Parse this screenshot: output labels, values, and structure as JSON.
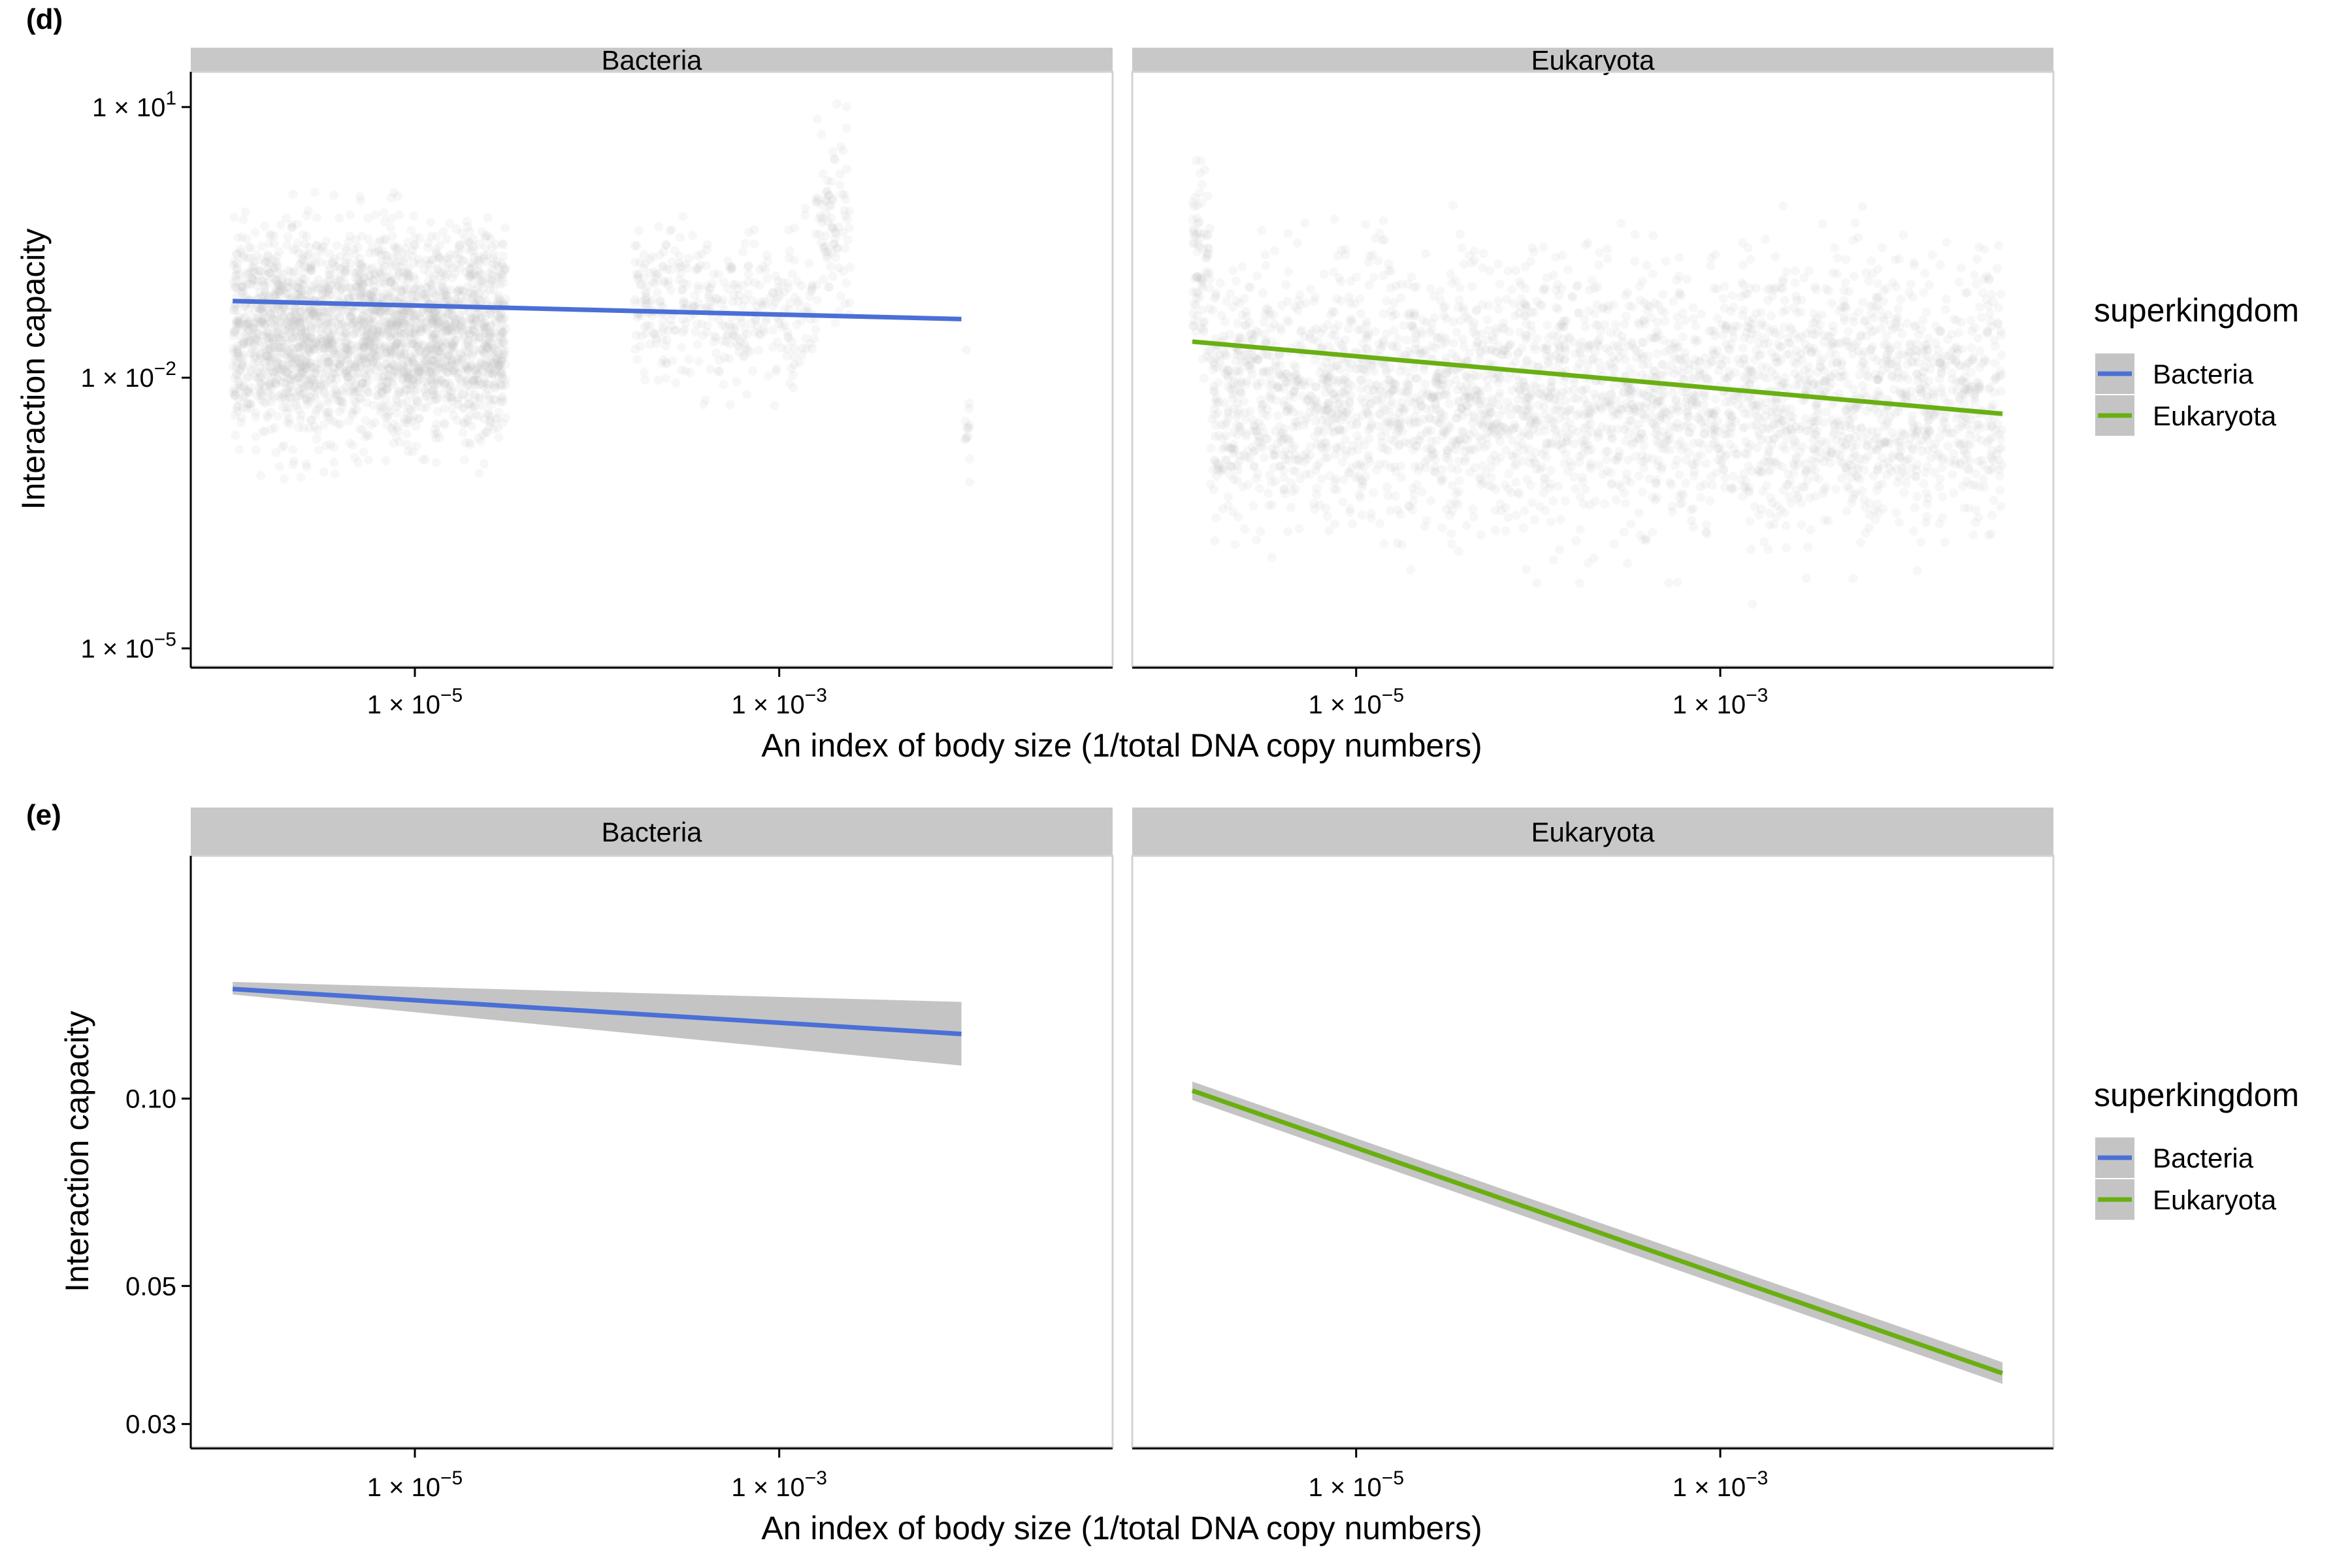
{
  "colors": {
    "bacteria": "#4A6FD6",
    "eukaryota": "#6AAF12",
    "points": "#BEBEBE",
    "strip": "#C8C8C8",
    "ribbon": "#C4C4C4",
    "frame": "#D3D3D3",
    "axis": "#000000"
  },
  "legend": {
    "title": "superkingdom",
    "items": [
      {
        "label": "Bacteria",
        "color_key": "bacteria"
      },
      {
        "label": "Eukaryota",
        "color_key": "eukaryota"
      }
    ]
  },
  "chart_data": [
    {
      "panel_tag": "(d)",
      "type": "scatter",
      "xlabel": "An index of body size (1/total DNA copy numbers)",
      "ylabel": "Interaction capacity",
      "x_scale": "log10",
      "y_scale": "log10",
      "x_ticks": [
        1e-05,
        0.001
      ],
      "x_tick_labels": [
        {
          "base": "1 × 10",
          "exp": "−5"
        },
        {
          "base": "1 × 10",
          "exp": "−3"
        }
      ],
      "y_ticks": [
        1e-05,
        0.01,
        10
      ],
      "y_tick_labels": [
        {
          "base": "1 × 10",
          "exp": "−5"
        },
        {
          "base": "1 × 10",
          "exp": "−2"
        },
        {
          "base": "1 × 10",
          "exp": "1"
        }
      ],
      "xlim_log10": [
        -6.23,
        -1.17
      ],
      "ylim_log10": [
        -5.2,
        1.39
      ],
      "facets": [
        {
          "label": "Bacteria",
          "color_key": "bacteria",
          "points": {
            "clusters": [
              {
                "x_log10": [
                  -6.0,
                  -4.5
                ],
                "y_center_log10": -1.5,
                "y_spread": 1.0,
                "n": 2600
              },
              {
                "x_log10": [
                  -3.8,
                  -3.5
                ],
                "y_center_log10": -1.2,
                "y_spread": 0.7,
                "n": 140
              },
              {
                "x_log10": [
                  -3.5,
                  -2.8
                ],
                "y_center_log10": -1.3,
                "y_spread": 0.8,
                "n": 240
              },
              {
                "x_log10": [
                  -2.8,
                  -2.6
                ],
                "y_center_log10": -0.2,
                "y_spread": 1.0,
                "n": 90
              },
              {
                "x_log10": [
                  -1.98,
                  -1.95
                ],
                "y_center_log10": -2.5,
                "y_spread": 1.0,
                "n": 14
              }
            ]
          },
          "fit": {
            "x_log10": [
              -6.0,
              -2.0
            ],
            "y_log10": [
              -1.15,
              -1.35
            ]
          }
        },
        {
          "label": "Eukaryota",
          "color_key": "eukaryota",
          "points": {
            "clusters": [
              {
                "x_log10": [
                  -5.9,
                  -5.8
                ],
                "y_center_log10": -0.7,
                "y_spread": 0.9,
                "n": 80
              },
              {
                "x_log10": [
                  -5.8,
                  -1.45
                ],
                "y_center_log10": -2.2,
                "y_spread": 1.3,
                "n": 3400
              }
            ]
          },
          "fit": {
            "x_log10": [
              -5.9,
              -1.45
            ],
            "y_log10": [
              -1.6,
              -2.4
            ]
          }
        }
      ]
    },
    {
      "panel_tag": "(e)",
      "type": "line",
      "xlabel": "An index of body size (1/total DNA copy numbers)",
      "ylabel": "Interaction capacity",
      "x_scale": "log10",
      "y_scale": "log10",
      "x_ticks": [
        1e-05,
        0.001
      ],
      "x_tick_labels": [
        {
          "base": "1 × 10",
          "exp": "−5"
        },
        {
          "base": "1 × 10",
          "exp": "−3"
        }
      ],
      "y_ticks": [
        0.03,
        0.05,
        0.1
      ],
      "y_tick_labels": [
        "0.03",
        "0.05",
        "0.10"
      ],
      "xlim_log10": [
        -6.23,
        -1.17
      ],
      "ylim_log10": [
        -1.56,
        -0.61
      ],
      "facets": [
        {
          "label": "Bacteria",
          "color_key": "bacteria",
          "fit": {
            "x_log10": [
              -6.0,
              -2.0
            ],
            "y": [
              0.15,
              0.127
            ]
          },
          "ci_lower": [
            0.147,
            0.113
          ],
          "ci_upper": [
            0.154,
            0.143
          ]
        },
        {
          "label": "Eukaryota",
          "color_key": "eukaryota",
          "fit": {
            "x_log10": [
              -5.9,
              -1.45
            ],
            "y": [
              0.103,
              0.0362
            ]
          },
          "ci_lower": [
            0.0995,
            0.0348
          ],
          "ci_upper": [
            0.1065,
            0.0377
          ]
        }
      ]
    }
  ]
}
